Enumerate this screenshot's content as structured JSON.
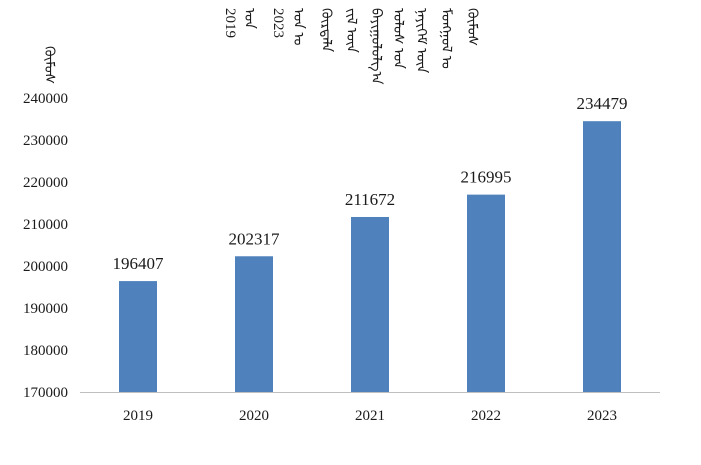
{
  "chart_data": {
    "type": "bar",
    "title_lines": [
      "2019",
      "ᠣᠨ",
      "2023",
      "ᠣᠨ ᠤ",
      "ᠬᠦᠷᠲᠡᠯᠡ",
      "ᠵᠢᠯ ᠦᠨ",
      "ᠪᠠᠶᠢᠭᠤᠯᠤᠯᠭ᠎ᠠ",
      "ᠤᠯᠤᠰ ᠤᠨ",
      "ᠨᠡᠶᠢᠭᠡᠮ ᠦᠨ",
      "ᠮᠤᠩᠭᠤᠯ ᠤ",
      "ᠬᠦᠮᠦᠰ"
    ],
    "ylabel": "ᠬᠦᠮᠦᠰ",
    "xlabel": "",
    "categories": [
      "2019",
      "2020",
      "2021",
      "2022",
      "2023"
    ],
    "values": [
      196407,
      202317,
      211672,
      216995,
      234479
    ],
    "data_labels": [
      "196407",
      "202317",
      "211672",
      "216995",
      "234479"
    ],
    "ylim": [
      170000,
      240000
    ],
    "yticks": [
      "170000",
      "180000",
      "190000",
      "200000",
      "210000",
      "220000",
      "230000",
      "240000"
    ],
    "grid": false,
    "legend": "none",
    "colors": {
      "bar": "#4f81bd",
      "axis": "#bfbfbf",
      "text": "#1a1a1a"
    }
  }
}
